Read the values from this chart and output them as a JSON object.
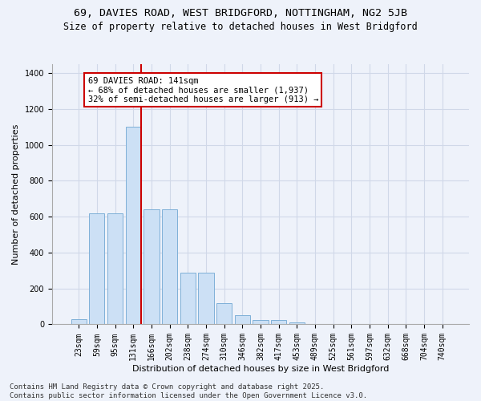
{
  "title_line1": "69, DAVIES ROAD, WEST BRIDGFORD, NOTTINGHAM, NG2 5JB",
  "title_line2": "Size of property relative to detached houses in West Bridgford",
  "xlabel": "Distribution of detached houses by size in West Bridgford",
  "ylabel": "Number of detached properties",
  "categories": [
    "23sqm",
    "59sqm",
    "95sqm",
    "131sqm",
    "166sqm",
    "202sqm",
    "238sqm",
    "274sqm",
    "310sqm",
    "346sqm",
    "382sqm",
    "417sqm",
    "453sqm",
    "489sqm",
    "525sqm",
    "561sqm",
    "597sqm",
    "632sqm",
    "668sqm",
    "704sqm",
    "740sqm"
  ],
  "values": [
    30,
    620,
    620,
    1100,
    640,
    640,
    290,
    290,
    120,
    50,
    25,
    25,
    10,
    0,
    0,
    0,
    0,
    0,
    0,
    0,
    0
  ],
  "bar_color": "#cce0f5",
  "bar_edge_color": "#7fb0d8",
  "vline_color": "#cc0000",
  "vline_pos": 3.425,
  "annotation_box_text": "69 DAVIES ROAD: 141sqm\n← 68% of detached houses are smaller (1,937)\n32% of semi-detached houses are larger (913) →",
  "annotation_box_facecolor": "white",
  "annotation_box_edgecolor": "#cc0000",
  "ylim": [
    0,
    1450
  ],
  "yticks": [
    0,
    200,
    400,
    600,
    800,
    1000,
    1200,
    1400
  ],
  "grid_color": "#d0d8e8",
  "bg_color": "#eef2fa",
  "footer_line1": "Contains HM Land Registry data © Crown copyright and database right 2025.",
  "footer_line2": "Contains public sector information licensed under the Open Government Licence v3.0.",
  "title_fontsize": 9.5,
  "subtitle_fontsize": 8.5,
  "axis_label_fontsize": 8,
  "tick_fontsize": 7,
  "annotation_fontsize": 7.5,
  "footer_fontsize": 6.5
}
